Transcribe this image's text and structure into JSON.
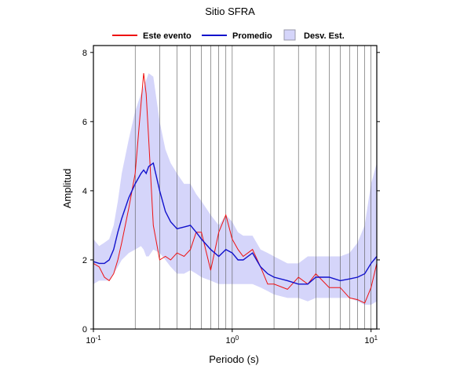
{
  "chart_data": {
    "type": "line",
    "title": "Sitio SFRA",
    "x_label": "Periodo (s)",
    "y_label": "Amplitud",
    "log_x": true,
    "xlim": [
      0.1,
      11
    ],
    "ylim": [
      0,
      8.2
    ],
    "xticks": [
      {
        "value": 0.1,
        "label": "10",
        "exponent": "-1"
      },
      {
        "value": 1,
        "label": "10",
        "exponent": "0"
      },
      {
        "value": 10,
        "label": "10",
        "exponent": "1"
      }
    ],
    "yticks": [
      0,
      2,
      4,
      6,
      8
    ],
    "xgrid": [
      0.2,
      0.3,
      0.4,
      0.5,
      0.6,
      0.7,
      0.8,
      0.9,
      1,
      2,
      3,
      4,
      5,
      6,
      7,
      8,
      9,
      10
    ],
    "x": [
      0.1,
      0.11,
      0.12,
      0.13,
      0.14,
      0.15,
      0.16,
      0.18,
      0.2,
      0.22,
      0.23,
      0.24,
      0.25,
      0.27,
      0.3,
      0.33,
      0.36,
      0.4,
      0.45,
      0.5,
      0.55,
      0.6,
      0.7,
      0.8,
      0.9,
      1.0,
      1.1,
      1.2,
      1.4,
      1.6,
      1.8,
      2,
      2.5,
      3,
      3.5,
      4,
      5,
      6,
      7,
      8,
      9,
      10,
      11
    ],
    "series": [
      {
        "name": "Este evento",
        "color": "#ee1111",
        "values": [
          1.9,
          1.8,
          1.5,
          1.4,
          1.6,
          2.0,
          2.5,
          3.5,
          4.5,
          6.5,
          7.4,
          6.8,
          5.5,
          3.0,
          2.0,
          2.1,
          2.0,
          2.2,
          2.1,
          2.3,
          2.8,
          2.8,
          1.7,
          2.8,
          3.3,
          2.6,
          2.3,
          2.1,
          2.3,
          1.8,
          1.3,
          1.3,
          1.15,
          1.5,
          1.3,
          1.6,
          1.2,
          1.2,
          0.9,
          0.85,
          0.75,
          1.2,
          1.9
        ]
      },
      {
        "name": "Promedio",
        "color": "#1111cc",
        "values": [
          1.95,
          1.9,
          1.9,
          2.0,
          2.3,
          2.8,
          3.2,
          3.8,
          4.2,
          4.5,
          4.6,
          4.5,
          4.7,
          4.8,
          4.0,
          3.4,
          3.1,
          2.9,
          2.95,
          3.0,
          2.8,
          2.6,
          2.3,
          2.1,
          2.3,
          2.2,
          2.0,
          2.0,
          2.2,
          1.8,
          1.6,
          1.5,
          1.4,
          1.3,
          1.3,
          1.5,
          1.5,
          1.4,
          1.45,
          1.5,
          1.6,
          1.9,
          2.1
        ]
      },
      {
        "name": "Desv. Est.",
        "color": "#d5d5fa",
        "band": true,
        "upper": [
          2.6,
          2.4,
          2.5,
          2.6,
          3.0,
          3.7,
          4.5,
          5.5,
          6.3,
          6.8,
          7.0,
          7.2,
          7.4,
          7.3,
          6.0,
          5.2,
          4.8,
          4.5,
          4.2,
          4.2,
          3.9,
          3.7,
          3.3,
          3.0,
          3.3,
          3.1,
          2.8,
          2.7,
          2.7,
          2.3,
          2.2,
          2.1,
          1.9,
          1.9,
          2.1,
          2.1,
          2.1,
          2.1,
          2.2,
          2.5,
          3.0,
          4.2,
          4.8
        ],
        "lower": [
          1.3,
          1.4,
          1.4,
          1.4,
          1.6,
          1.8,
          2.0,
          2.2,
          2.3,
          2.4,
          2.3,
          2.1,
          2.1,
          2.3,
          2.2,
          2.0,
          1.8,
          1.6,
          1.6,
          1.7,
          1.6,
          1.5,
          1.4,
          1.3,
          1.3,
          1.3,
          1.3,
          1.3,
          1.3,
          1.2,
          1.1,
          1.0,
          0.9,
          0.9,
          0.8,
          0.9,
          0.9,
          0.9,
          0.9,
          0.8,
          0.7,
          0.7,
          0.8
        ]
      }
    ]
  }
}
